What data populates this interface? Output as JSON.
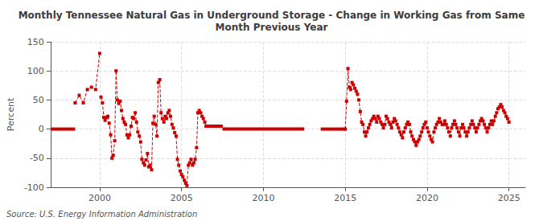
{
  "chart_data": {
    "type": "line",
    "title": "Monthly Tennessee Natural Gas in Underground Storage - Change in Working Gas from Same\nMonth Previous Year",
    "ylabel": "Percent",
    "source": "Source: U.S. Energy Information Administration",
    "xlim": [
      1997.0,
      2026.0
    ],
    "xticks": [
      2000,
      2005,
      2010,
      2015,
      2020,
      2025
    ],
    "ylim": [
      -100,
      150
    ],
    "yticks": [
      -100,
      -50,
      0,
      50,
      100,
      150
    ],
    "grid": true,
    "color": "#cc0000",
    "series": [
      {
        "line_style": "dashed",
        "marker": "square",
        "x": [
          1998.5,
          1998.75,
          1999.0,
          1999.25,
          1999.5,
          1999.75,
          2000.0
        ],
        "values": [
          45,
          58,
          45,
          68,
          72,
          68,
          130
        ]
      },
      {
        "line_style": "dashed",
        "marker": "square",
        "x": [
          2000.08,
          2000.17,
          2000.25,
          2000.33,
          2000.42,
          2000.5,
          2000.58,
          2000.67,
          2000.75,
          2000.83,
          2000.92,
          2001.0,
          2001.08,
          2001.17,
          2001.25,
          2001.33,
          2001.42,
          2001.5,
          2001.58,
          2001.67,
          2001.75,
          2001.83,
          2001.92,
          2002.0,
          2002.08,
          2002.17,
          2002.25,
          2002.33,
          2002.42,
          2002.5,
          2002.58,
          2002.67,
          2002.75,
          2002.83,
          2002.92,
          2003.0,
          2003.08,
          2003.17,
          2003.25,
          2003.33,
          2003.42,
          2003.5,
          2003.58,
          2003.67,
          2003.75,
          2003.83,
          2003.92,
          2004.0,
          2004.08,
          2004.17,
          2004.25,
          2004.33,
          2004.42,
          2004.5,
          2004.58,
          2004.67,
          2004.75,
          2004.83,
          2004.92,
          2005.0,
          2005.08,
          2005.17,
          2005.25,
          2005.33,
          2005.42,
          2005.5,
          2005.58,
          2005.67,
          2005.75,
          2005.83,
          2005.92,
          2006.0,
          2006.08,
          2006.17,
          2006.25,
          2006.33,
          2006.42,
          2006.5,
          2006.58,
          2006.67,
          2006.75,
          2006.83,
          2006.92,
          2007.0,
          2007.08,
          2007.17,
          2007.25,
          2007.33,
          2007.42
        ],
        "values": [
          55,
          45,
          20,
          15,
          20,
          22,
          10,
          -10,
          -50,
          -45,
          -20,
          100,
          50,
          44,
          48,
          32,
          18,
          12,
          8,
          -10,
          -15,
          -10,
          5,
          20,
          18,
          28,
          12,
          -5,
          -12,
          -22,
          -52,
          -58,
          -62,
          -53,
          -42,
          -65,
          -62,
          -70,
          10,
          22,
          8,
          -12,
          80,
          85,
          28,
          18,
          12,
          22,
          18,
          28,
          32,
          22,
          8,
          2,
          -6,
          -12,
          -52,
          -62,
          -72,
          -78,
          -82,
          -88,
          -93,
          -97,
          -62,
          -58,
          -52,
          -62,
          -58,
          -52,
          -32,
          28,
          32,
          28,
          22,
          18,
          12,
          5,
          5,
          5,
          5,
          5,
          5,
          5,
          5,
          5,
          5,
          5,
          5
        ]
      },
      {
        "line_style": "dashed",
        "marker": "square",
        "x": [
          2015.0,
          2015.08,
          2015.17,
          2015.25,
          2015.33,
          2015.42,
          2015.5,
          2015.58,
          2015.67,
          2015.75,
          2015.83,
          2015.92,
          2016.0,
          2016.08,
          2016.17,
          2016.25,
          2016.33,
          2016.42,
          2016.5,
          2016.58,
          2016.67,
          2016.75,
          2016.83,
          2016.92,
          2017.0,
          2017.08,
          2017.17,
          2017.25,
          2017.33,
          2017.42,
          2017.5,
          2017.58,
          2017.67,
          2017.75,
          2017.83,
          2017.92,
          2018.0,
          2018.08,
          2018.17,
          2018.25,
          2018.33,
          2018.42,
          2018.5,
          2018.58,
          2018.67,
          2018.75,
          2018.83,
          2018.92,
          2019.0,
          2019.08,
          2019.17,
          2019.25,
          2019.33,
          2019.42,
          2019.5,
          2019.58,
          2019.67,
          2019.75,
          2019.83,
          2019.92,
          2020.0,
          2020.08,
          2020.17,
          2020.25,
          2020.33,
          2020.42,
          2020.5,
          2020.58,
          2020.67,
          2020.75,
          2020.83,
          2020.92,
          2021.0,
          2021.08,
          2021.17,
          2021.25,
          2021.33,
          2021.42,
          2021.5,
          2021.58,
          2021.67,
          2021.75,
          2021.83,
          2021.92,
          2022.0,
          2022.08,
          2022.17,
          2022.25,
          2022.33,
          2022.42,
          2022.5,
          2022.58,
          2022.67,
          2022.75,
          2022.83,
          2022.92,
          2023.0,
          2023.08,
          2023.17,
          2023.25,
          2023.33,
          2023.42,
          2023.5,
          2023.58,
          2023.67,
          2023.75,
          2023.83,
          2023.92,
          2024.0,
          2024.08,
          2024.17,
          2024.25,
          2024.33,
          2024.42,
          2024.5,
          2024.58,
          2024.67,
          2024.75,
          2024.83,
          2024.92,
          2025.0
        ],
        "values": [
          0,
          48,
          104,
          72,
          68,
          80,
          76,
          70,
          65,
          60,
          50,
          30,
          12,
          8,
          -5,
          -12,
          -5,
          2,
          8,
          14,
          18,
          22,
          18,
          12,
          22,
          18,
          12,
          8,
          2,
          8,
          22,
          18,
          12,
          8,
          2,
          12,
          18,
          14,
          8,
          2,
          -5,
          -10,
          -15,
          -5,
          2,
          8,
          12,
          8,
          -5,
          -12,
          -18,
          -22,
          -28,
          -22,
          -18,
          -12,
          -5,
          2,
          8,
          12,
          2,
          -5,
          -12,
          -18,
          -22,
          -5,
          2,
          8,
          12,
          18,
          12,
          8,
          8,
          14,
          8,
          2,
          -5,
          -12,
          2,
          8,
          14,
          8,
          2,
          -5,
          -12,
          2,
          8,
          2,
          -5,
          -12,
          -5,
          2,
          8,
          14,
          8,
          2,
          -5,
          2,
          8,
          14,
          18,
          14,
          8,
          2,
          -5,
          2,
          8,
          14,
          8,
          14,
          22,
          28,
          35,
          38,
          42,
          38,
          32,
          28,
          22,
          18,
          12
        ]
      },
      {
        "line_style": "solid",
        "marker": "none",
        "x": [
          1997.0,
          1998.5
        ],
        "values": [
          0,
          0
        ]
      },
      {
        "line_style": "solid",
        "marker": "none",
        "x": [
          2007.5,
          2012.5
        ],
        "values": [
          0,
          0
        ]
      },
      {
        "line_style": "solid",
        "marker": "none",
        "x": [
          2013.5,
          2015.0
        ],
        "values": [
          0,
          0
        ]
      }
    ]
  }
}
